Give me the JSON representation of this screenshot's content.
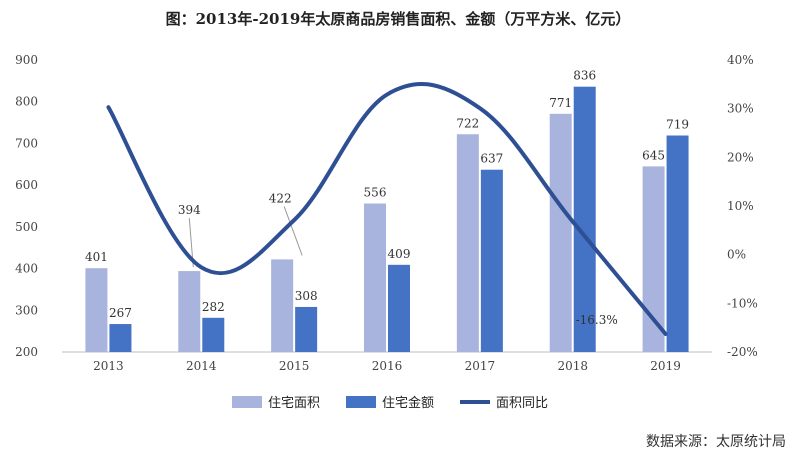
{
  "chart_data": {
    "type": "bar",
    "title": "图：2013年-2019年太原商品房销售面积、金额（万平方米、亿元）",
    "categories": [
      "2013",
      "2014",
      "2015",
      "2016",
      "2017",
      "2018",
      "2019"
    ],
    "series": [
      {
        "name": "住宅面积",
        "type": "bar",
        "axis": "left",
        "color": "#a9b4de",
        "values": [
          401,
          394,
          422,
          556,
          722,
          771,
          645
        ]
      },
      {
        "name": "住宅金额",
        "type": "bar",
        "axis": "left",
        "color": "#4472c4",
        "values": [
          267,
          282,
          308,
          409,
          637,
          836,
          719
        ]
      },
      {
        "name": "面积同比",
        "type": "line",
        "axis": "right",
        "color": "#2f4f95",
        "values": [
          30.3,
          -2.6,
          7.1,
          32.9,
          30.1,
          6.8,
          -16.3
        ]
      }
    ],
    "line_annotation": "-16.3%",
    "left_axis": {
      "min": 200,
      "max": 900,
      "ticks": [
        "200",
        "300",
        "400",
        "500",
        "600",
        "700",
        "800",
        "900"
      ]
    },
    "right_axis": {
      "min": -20,
      "max": 40,
      "ticks": [
        "-20%",
        "-10%",
        "0%",
        "10%",
        "20%",
        "30%",
        "40%"
      ]
    },
    "grid": false,
    "legend_position": "bottom"
  },
  "source": "数据来源：太原统计局"
}
